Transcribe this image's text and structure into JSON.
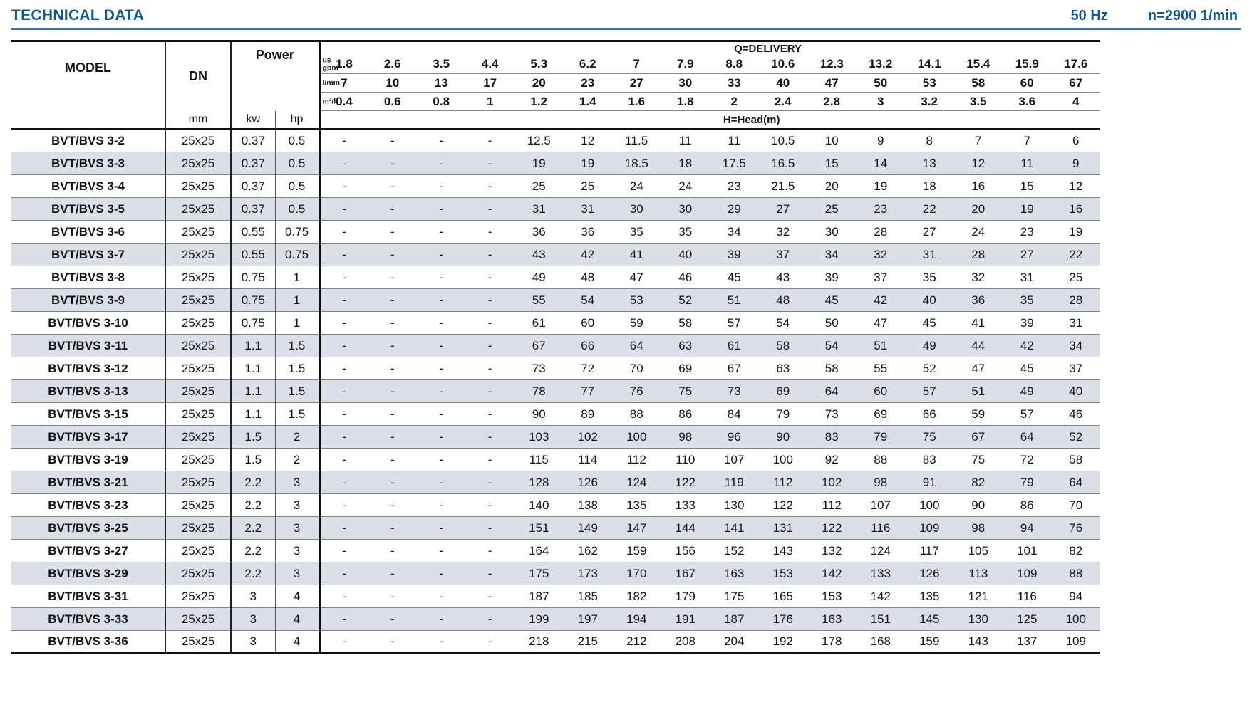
{
  "page": {
    "title": "TECHNICAL DATA",
    "frequency": "50 Hz",
    "speed": "n=2900 1/min"
  },
  "table": {
    "headers": {
      "model": "MODEL",
      "dn": "DN",
      "dn_unit": "mm",
      "power": "Power",
      "kw_label": "kw",
      "hp_label": "hp",
      "delivery_title": "Q=DELIVERY",
      "head_title": "H=Head(m)",
      "unit_rows": [
        {
          "name": "gpm",
          "unit": "us\ngpm",
          "values": [
            "1.8",
            "2.6",
            "3.5",
            "4.4",
            "5.3",
            "6.2",
            "7",
            "7.9",
            "8.8",
            "10.6",
            "12.3",
            "13.2",
            "14.1",
            "15.4",
            "15.9",
            "17.6"
          ]
        },
        {
          "name": "lmin",
          "unit": "l/min",
          "values": [
            "7",
            "10",
            "13",
            "17",
            "20",
            "23",
            "27",
            "30",
            "33",
            "40",
            "47",
            "50",
            "53",
            "58",
            "60",
            "67"
          ]
        },
        {
          "name": "m3h",
          "unit": "m³/h",
          "values": [
            "0.4",
            "0.6",
            "0.8",
            "1",
            "1.2",
            "1.4",
            "1.6",
            "1.8",
            "2",
            "2.4",
            "2.8",
            "3",
            "3.2",
            "3.5",
            "3.6",
            "4"
          ]
        }
      ]
    },
    "rows": [
      {
        "model": "BVT/BVS 3-2",
        "dn": "25x25",
        "kw": "0.37",
        "hp": "0.5",
        "head": [
          "-",
          "-",
          "-",
          "-",
          "12.5",
          "12",
          "11.5",
          "11",
          "11",
          "10.5",
          "10",
          "9",
          "8",
          "7",
          "7",
          "6"
        ]
      },
      {
        "model": "BVT/BVS 3-3",
        "dn": "25x25",
        "kw": "0.37",
        "hp": "0.5",
        "head": [
          "-",
          "-",
          "-",
          "-",
          "19",
          "19",
          "18.5",
          "18",
          "17.5",
          "16.5",
          "15",
          "14",
          "13",
          "12",
          "11",
          "9"
        ]
      },
      {
        "model": "BVT/BVS 3-4",
        "dn": "25x25",
        "kw": "0.37",
        "hp": "0.5",
        "head": [
          "-",
          "-",
          "-",
          "-",
          "25",
          "25",
          "24",
          "24",
          "23",
          "21.5",
          "20",
          "19",
          "18",
          "16",
          "15",
          "12"
        ]
      },
      {
        "model": "BVT/BVS 3-5",
        "dn": "25x25",
        "kw": "0.37",
        "hp": "0.5",
        "head": [
          "-",
          "-",
          "-",
          "-",
          "31",
          "31",
          "30",
          "30",
          "29",
          "27",
          "25",
          "23",
          "22",
          "20",
          "19",
          "16"
        ]
      },
      {
        "model": "BVT/BVS 3-6",
        "dn": "25x25",
        "kw": "0.55",
        "hp": "0.75",
        "head": [
          "-",
          "-",
          "-",
          "-",
          "36",
          "36",
          "35",
          "35",
          "34",
          "32",
          "30",
          "28",
          "27",
          "24",
          "23",
          "19"
        ]
      },
      {
        "model": "BVT/BVS 3-7",
        "dn": "25x25",
        "kw": "0.55",
        "hp": "0.75",
        "head": [
          "-",
          "-",
          "-",
          "-",
          "43",
          "42",
          "41",
          "40",
          "39",
          "37",
          "34",
          "32",
          "31",
          "28",
          "27",
          "22"
        ]
      },
      {
        "model": "BVT/BVS 3-8",
        "dn": "25x25",
        "kw": "0.75",
        "hp": "1",
        "head": [
          "-",
          "-",
          "-",
          "-",
          "49",
          "48",
          "47",
          "46",
          "45",
          "43",
          "39",
          "37",
          "35",
          "32",
          "31",
          "25"
        ]
      },
      {
        "model": "BVT/BVS 3-9",
        "dn": "25x25",
        "kw": "0.75",
        "hp": "1",
        "head": [
          "-",
          "-",
          "-",
          "-",
          "55",
          "54",
          "53",
          "52",
          "51",
          "48",
          "45",
          "42",
          "40",
          "36",
          "35",
          "28"
        ]
      },
      {
        "model": "BVT/BVS 3-10",
        "dn": "25x25",
        "kw": "0.75",
        "hp": "1",
        "head": [
          "-",
          "-",
          "-",
          "-",
          "61",
          "60",
          "59",
          "58",
          "57",
          "54",
          "50",
          "47",
          "45",
          "41",
          "39",
          "31"
        ]
      },
      {
        "model": "BVT/BVS 3-11",
        "dn": "25x25",
        "kw": "1.1",
        "hp": "1.5",
        "head": [
          "-",
          "-",
          "-",
          "-",
          "67",
          "66",
          "64",
          "63",
          "61",
          "58",
          "54",
          "51",
          "49",
          "44",
          "42",
          "34"
        ]
      },
      {
        "model": "BVT/BVS 3-12",
        "dn": "25x25",
        "kw": "1.1",
        "hp": "1.5",
        "head": [
          "-",
          "-",
          "-",
          "-",
          "73",
          "72",
          "70",
          "69",
          "67",
          "63",
          "58",
          "55",
          "52",
          "47",
          "45",
          "37"
        ]
      },
      {
        "model": "BVT/BVS 3-13",
        "dn": "25x25",
        "kw": "1.1",
        "hp": "1.5",
        "head": [
          "-",
          "-",
          "-",
          "-",
          "78",
          "77",
          "76",
          "75",
          "73",
          "69",
          "64",
          "60",
          "57",
          "51",
          "49",
          "40"
        ]
      },
      {
        "model": "BVT/BVS 3-15",
        "dn": "25x25",
        "kw": "1.1",
        "hp": "1.5",
        "head": [
          "-",
          "-",
          "-",
          "-",
          "90",
          "89",
          "88",
          "86",
          "84",
          "79",
          "73",
          "69",
          "66",
          "59",
          "57",
          "46"
        ]
      },
      {
        "model": "BVT/BVS 3-17",
        "dn": "25x25",
        "kw": "1.5",
        "hp": "2",
        "head": [
          "-",
          "-",
          "-",
          "-",
          "103",
          "102",
          "100",
          "98",
          "96",
          "90",
          "83",
          "79",
          "75",
          "67",
          "64",
          "52"
        ]
      },
      {
        "model": "BVT/BVS 3-19",
        "dn": "25x25",
        "kw": "1.5",
        "hp": "2",
        "head": [
          "-",
          "-",
          "-",
          "-",
          "115",
          "114",
          "112",
          "110",
          "107",
          "100",
          "92",
          "88",
          "83",
          "75",
          "72",
          "58"
        ]
      },
      {
        "model": "BVT/BVS 3-21",
        "dn": "25x25",
        "kw": "2.2",
        "hp": "3",
        "head": [
          "-",
          "-",
          "-",
          "-",
          "128",
          "126",
          "124",
          "122",
          "119",
          "112",
          "102",
          "98",
          "91",
          "82",
          "79",
          "64"
        ]
      },
      {
        "model": "BVT/BVS 3-23",
        "dn": "25x25",
        "kw": "2.2",
        "hp": "3",
        "head": [
          "-",
          "-",
          "-",
          "-",
          "140",
          "138",
          "135",
          "133",
          "130",
          "122",
          "112",
          "107",
          "100",
          "90",
          "86",
          "70"
        ]
      },
      {
        "model": "BVT/BVS 3-25",
        "dn": "25x25",
        "kw": "2.2",
        "hp": "3",
        "head": [
          "-",
          "-",
          "-",
          "-",
          "151",
          "149",
          "147",
          "144",
          "141",
          "131",
          "122",
          "116",
          "109",
          "98",
          "94",
          "76"
        ]
      },
      {
        "model": "BVT/BVS 3-27",
        "dn": "25x25",
        "kw": "2.2",
        "hp": "3",
        "head": [
          "-",
          "-",
          "-",
          "-",
          "164",
          "162",
          "159",
          "156",
          "152",
          "143",
          "132",
          "124",
          "117",
          "105",
          "101",
          "82"
        ]
      },
      {
        "model": "BVT/BVS 3-29",
        "dn": "25x25",
        "kw": "2.2",
        "hp": "3",
        "head": [
          "-",
          "-",
          "-",
          "-",
          "175",
          "173",
          "170",
          "167",
          "163",
          "153",
          "142",
          "133",
          "126",
          "113",
          "109",
          "88"
        ]
      },
      {
        "model": "BVT/BVS 3-31",
        "dn": "25x25",
        "kw": "3",
        "hp": "4",
        "head": [
          "-",
          "-",
          "-",
          "-",
          "187",
          "185",
          "182",
          "179",
          "175",
          "165",
          "153",
          "142",
          "135",
          "121",
          "116",
          "94"
        ]
      },
      {
        "model": "BVT/BVS 3-33",
        "dn": "25x25",
        "kw": "3",
        "hp": "4",
        "head": [
          "-",
          "-",
          "-",
          "-",
          "199",
          "197",
          "194",
          "191",
          "187",
          "176",
          "163",
          "151",
          "145",
          "130",
          "125",
          "100"
        ]
      },
      {
        "model": "BVT/BVS 3-36",
        "dn": "25x25",
        "kw": "3",
        "hp": "4",
        "head": [
          "-",
          "-",
          "-",
          "-",
          "218",
          "215",
          "212",
          "208",
          "204",
          "192",
          "178",
          "168",
          "159",
          "143",
          "137",
          "109"
        ]
      }
    ]
  }
}
